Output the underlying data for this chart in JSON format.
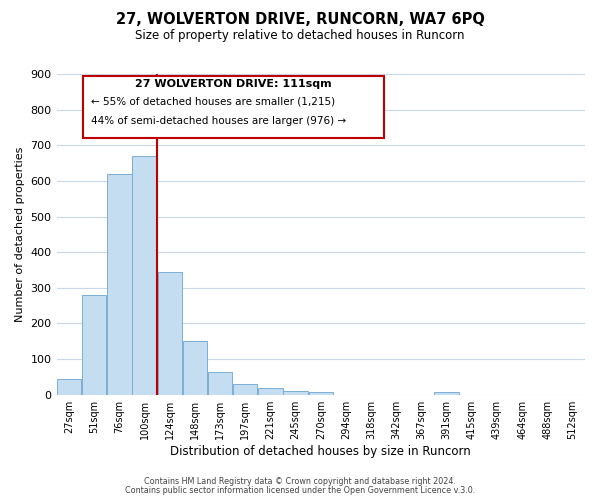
{
  "title": "27, WOLVERTON DRIVE, RUNCORN, WA7 6PQ",
  "subtitle": "Size of property relative to detached houses in Runcorn",
  "xlabel": "Distribution of detached houses by size in Runcorn",
  "ylabel": "Number of detached properties",
  "bin_labels": [
    "27sqm",
    "51sqm",
    "76sqm",
    "100sqm",
    "124sqm",
    "148sqm",
    "173sqm",
    "197sqm",
    "221sqm",
    "245sqm",
    "270sqm",
    "294sqm",
    "318sqm",
    "342sqm",
    "367sqm",
    "391sqm",
    "415sqm",
    "439sqm",
    "464sqm",
    "488sqm",
    "512sqm"
  ],
  "bar_values": [
    45,
    280,
    620,
    670,
    345,
    150,
    65,
    30,
    20,
    10,
    8,
    0,
    0,
    0,
    0,
    7,
    0,
    0,
    0,
    0,
    0
  ],
  "bar_color": "#c5ddf0",
  "bar_edge_color": "#7bafd4",
  "vline_color": "#c00000",
  "annotation_title": "27 WOLVERTON DRIVE: 111sqm",
  "annotation_line1": "← 55% of detached houses are smaller (1,215)",
  "annotation_line2": "44% of semi-detached houses are larger (976) →",
  "annotation_box_edge_color": "#c00000",
  "ylim": [
    0,
    900
  ],
  "yticks": [
    0,
    100,
    200,
    300,
    400,
    500,
    600,
    700,
    800,
    900
  ],
  "footer_line1": "Contains HM Land Registry data © Crown copyright and database right 2024.",
  "footer_line2": "Contains public sector information licensed under the Open Government Licence v.3.0.",
  "bg_color": "#ffffff",
  "grid_color": "#c8d8e8"
}
